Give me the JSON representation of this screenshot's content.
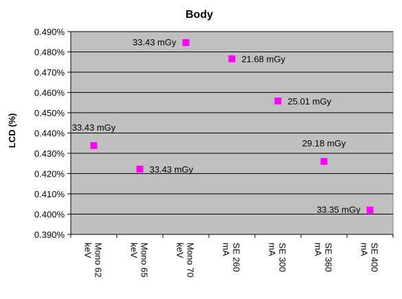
{
  "chart_data": {
    "type": "scatter",
    "title": "Body",
    "xlabel": "",
    "ylabel": "LCD (%)",
    "categories": [
      [
        "Mono 62",
        "keV"
      ],
      [
        "Mono 65",
        "keV"
      ],
      [
        "Mono 70",
        "keV"
      ],
      [
        "SE 260",
        "mA"
      ],
      [
        "SE 300",
        "mA"
      ],
      [
        "SE 360",
        "mA"
      ],
      [
        "SE 400",
        "mA"
      ]
    ],
    "values": [
      0.4338,
      0.4222,
      0.4846,
      0.4766,
      0.4558,
      0.426,
      0.402
    ],
    "data_labels": [
      "33.43 mGy",
      "33.43 mGy",
      "33.43 mGy",
      "21.68 mGy",
      "25.01 mGy",
      "29.18 mGy",
      "33.35 mGy"
    ],
    "label_position": [
      "above",
      "right",
      "left",
      "right",
      "right",
      "above",
      "left"
    ],
    "ylim": [
      0.39,
      0.49
    ],
    "yticks": [
      "0.390%",
      "0.400%",
      "0.410%",
      "0.420%",
      "0.430%",
      "0.440%",
      "0.450%",
      "0.460%",
      "0.470%",
      "0.480%",
      "0.490%"
    ],
    "grid": true,
    "legend": "none",
    "plot_background": "#c0c0c0",
    "marker_color": "#ff00ff",
    "gridline_color": "#000000"
  }
}
